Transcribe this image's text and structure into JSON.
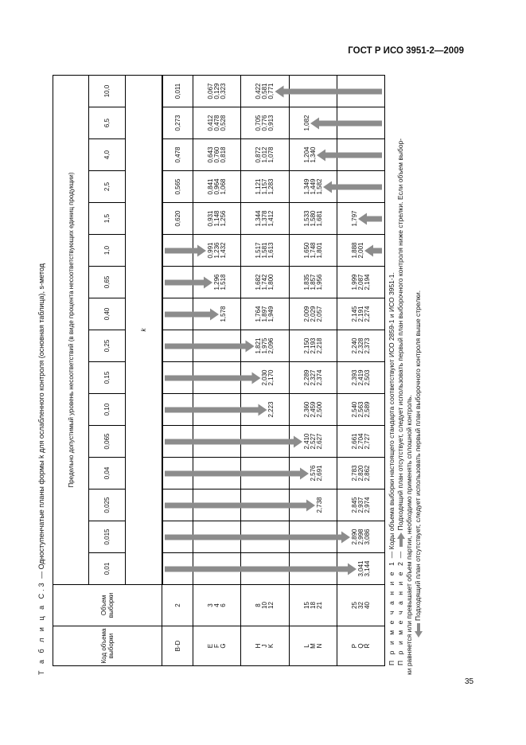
{
  "header": {
    "doc_code": "ГОСТ Р ИСО 3951-2—2009"
  },
  "page_number": "35",
  "caption": {
    "label": "Т а б л и ц а  С.3",
    "text": " — Одноступенчатые планы формы k для ослабленного контроля (основная таблица), s-метод"
  },
  "table": {
    "col_code": "Код объема выборки",
    "col_size": "Объем выборки",
    "aql_header": "Предельно допустимый уровень несоответствий (в виде процента несоответствующих единиц продукции)",
    "k_label": "k",
    "aql": [
      "0,01",
      "0,015",
      "0,025",
      "0,04",
      "0,065",
      "0,10",
      "0,15",
      "0,25",
      "0,40",
      "0,65",
      "1,0",
      "1,5",
      "2,5",
      "4,0",
      "6,5",
      "10,0"
    ],
    "arrow_color": "#8c8c8c",
    "rows": [
      {
        "codes": [
          "B-D"
        ],
        "sizes": [
          "2"
        ],
        "cells": [
          [],
          [],
          [],
          [],
          [],
          [],
          [],
          [],
          [],
          [],
          [],
          [
            "0,620"
          ],
          [
            "0,565"
          ],
          [
            "0,478"
          ],
          [
            "0,273"
          ],
          [
            "0,011"
          ]
        ]
      },
      {
        "codes": [
          "E",
          "F",
          "G"
        ],
        "sizes": [
          "3",
          "4",
          "6"
        ],
        "cells": [
          [],
          [],
          [],
          [],
          [],
          [],
          [],
          [],
          [
            "",
            "",
            "1,578"
          ],
          [
            "",
            "1,296",
            "1,518"
          ],
          [
            "0,991",
            "1,236",
            "1,432"
          ],
          [
            "0,931",
            "1,148",
            "1,256"
          ],
          [
            "0,841",
            "0,964",
            "1,068"
          ],
          [
            "0,643",
            "0,760",
            "0,818"
          ],
          [
            "0,412",
            "0,478",
            "0,528"
          ],
          [
            "0,067",
            "0,129",
            "0,323"
          ]
        ]
      },
      {
        "codes": [
          "H",
          "J",
          "K"
        ],
        "sizes": [
          "8",
          "10",
          "12"
        ],
        "cells": [
          [],
          [],
          [],
          [],
          [],
          [
            "",
            "",
            "2,223"
          ],
          [
            "",
            "2,030",
            "2,170"
          ],
          [
            "1,821",
            "1,975",
            "2,096"
          ],
          [
            "1,764",
            "1,897",
            "1,949"
          ],
          [
            "1,682",
            "1,742",
            "1,800"
          ],
          [
            "1,517",
            "1,581",
            "1,613"
          ],
          [
            "1,344",
            "1,378",
            "1,412"
          ],
          [
            "1,121",
            "1,157",
            "1,283"
          ],
          [
            "0,872",
            "1,012",
            "1,078"
          ],
          [
            "0,705",
            "0,776",
            "0,913"
          ],
          [
            "0,422",
            "0,581",
            "0,771"
          ]
        ]
      },
      {
        "codes": [
          "L",
          "M",
          "N"
        ],
        "sizes": [
          "15",
          "18",
          "21"
        ],
        "cells": [
          [],
          [],
          [
            "",
            "",
            "2,738"
          ],
          [
            "",
            "2,576",
            "2,691"
          ],
          [
            "2,410",
            "2,527",
            "2,627"
          ],
          [
            "2,360",
            "2,459",
            "2,500"
          ],
          [
            "2,289",
            "2,327",
            "2,374"
          ],
          [
            "2,150",
            "2,193",
            "2,218"
          ],
          [
            "2,009",
            "2,029",
            "2,057"
          ],
          [
            "1,835",
            "1,857",
            "1,956"
          ],
          [
            "1,650",
            "1,748",
            "1,801"
          ],
          [
            "1,533",
            "1,580",
            "1,681"
          ],
          [
            "1,349",
            "1,449",
            "1,582"
          ],
          [
            "1,204",
            "1,340",
            ""
          ],
          [
            "1,082",
            "",
            ""
          ],
          []
        ]
      },
      {
        "codes": [
          "P",
          "Q",
          "R"
        ],
        "sizes": [
          "25",
          "32",
          "40"
        ],
        "cells": [
          [
            "",
            "3,041",
            "3,144"
          ],
          [
            "2,890",
            "2,998",
            "3,086"
          ],
          [
            "2,845",
            "2,937",
            "2,974"
          ],
          [
            "2,783",
            "2,820",
            "2,862"
          ],
          [
            "2,661",
            "2,704",
            "2,727"
          ],
          [
            "2,540",
            "2,563",
            "2,589"
          ],
          [
            "2,393",
            "2,419",
            "2,503"
          ],
          [
            "2,240",
            "2,328",
            "2,373"
          ],
          [
            "2,145",
            "2,191",
            "2,274"
          ],
          [
            "1,999",
            "2,087",
            "2,194"
          ],
          [
            "1,888",
            "2,001",
            ""
          ],
          [
            "1,797",
            "",
            ""
          ],
          [],
          [],
          [],
          []
        ]
      }
    ],
    "arrows": [
      {
        "col": 0,
        "dir": "down",
        "row": 4,
        "slot": 1
      },
      {
        "col": 1,
        "dir": "down",
        "row": 4,
        "slot": 0
      },
      {
        "col": 2,
        "dir": "down",
        "row": 3,
        "slot": 2
      },
      {
        "col": 3,
        "dir": "down",
        "row": 3,
        "slot": 1
      },
      {
        "col": 4,
        "dir": "down",
        "row": 3,
        "slot": 0
      },
      {
        "col": 5,
        "dir": "down",
        "row": 2,
        "slot": 2
      },
      {
        "col": 6,
        "dir": "down",
        "row": 2,
        "slot": 1
      },
      {
        "col": 7,
        "dir": "down",
        "row": 2,
        "slot": 0
      },
      {
        "col": 8,
        "dir": "down",
        "row": 1,
        "slot": 2
      },
      {
        "col": 9,
        "dir": "down",
        "row": 1,
        "slot": 1
      },
      {
        "col": 10,
        "dir": "down",
        "row": 1,
        "slot": 0
      },
      {
        "col": 10,
        "dir": "up",
        "row": 4,
        "slot": 1
      },
      {
        "col": 11,
        "dir": "up",
        "row": 4,
        "slot": 0
      },
      {
        "col": 12,
        "dir": "up",
        "row": 3,
        "slot": 2
      },
      {
        "col": 13,
        "dir": "up",
        "row": 3,
        "slot": 1
      },
      {
        "col": 14,
        "dir": "up",
        "row": 3,
        "slot": 0
      },
      {
        "col": 15,
        "dir": "up",
        "row": 2,
        "slot": 2
      }
    ]
  },
  "notes": {
    "n1_label": "П р и м е ч а н и е  1",
    "n1_text": " — Коды объема выборки настоящего стандарта соответствуют ИСО 2859-1 и ИСО 3951-1.",
    "n2_label": "П р и м е ч а н и е  2",
    "n2_dash": " — ",
    "n2_line1": "Подходящий план отсутствует, следует использовать первый план выборочного контроля ниже стрелки. Если объем выбор-",
    "n2_line2": "ки равняется или превышает объем партии, необходимо применять сплошной контроль.",
    "n3_text": "Подходящий план отсутствует, следует использовать первый план выборочного контроля выше стрелки."
  }
}
